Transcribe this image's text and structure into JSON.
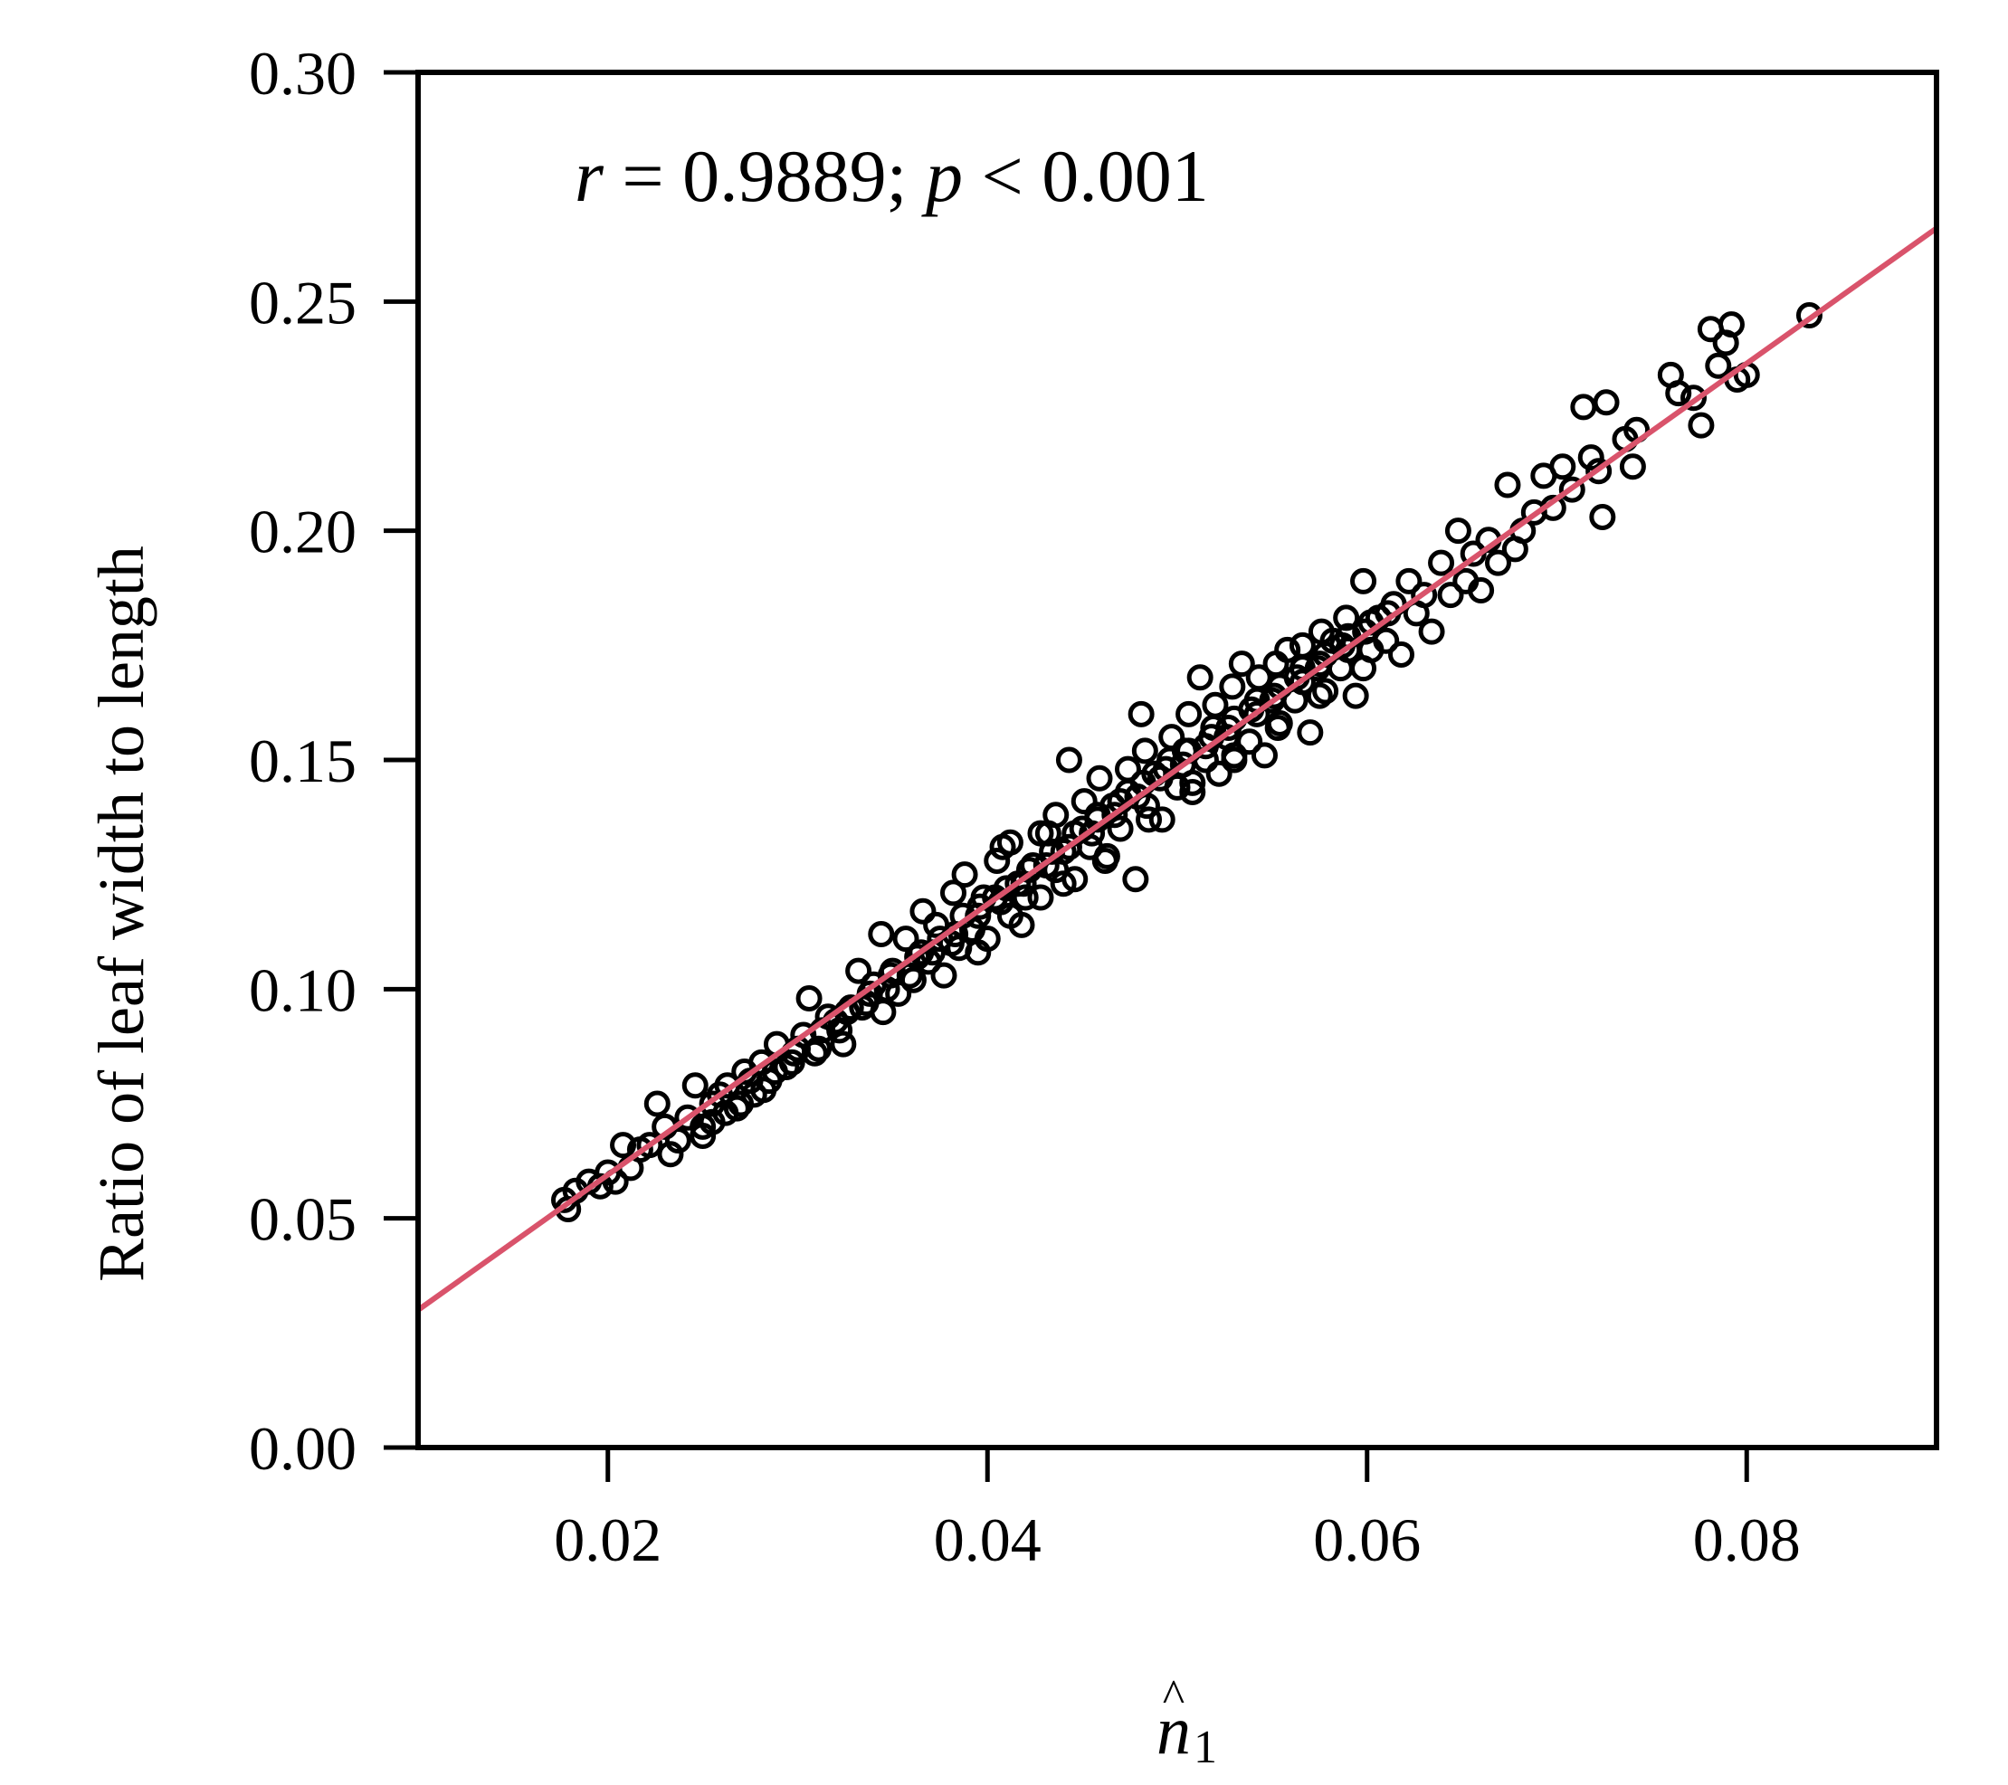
{
  "chart_data": {
    "type": "scatter",
    "title": "",
    "xlabel": "n̂1",
    "xlabel_symbol": "n",
    "xlabel_hat": "^",
    "xlabel_subscript": "1",
    "ylabel": "Ratio of leaf width to length",
    "xlim": [
      0.01,
      0.09
    ],
    "ylim": [
      0.0,
      0.3
    ],
    "x_ticks": [
      0.02,
      0.04,
      0.06,
      0.08
    ],
    "x_tick_labels": [
      "0.02",
      "0.04",
      "0.06",
      "0.08"
    ],
    "y_ticks": [
      0.0,
      0.05,
      0.1,
      0.15,
      0.2,
      0.25,
      0.3
    ],
    "y_tick_labels": [
      "0.00",
      "0.05",
      "0.10",
      "0.15",
      "0.20",
      "0.25",
      "0.30"
    ],
    "grid": false,
    "legend": "none",
    "marker": "open-circle",
    "marker_color": "#000000",
    "fit_line_color": "#d9536b",
    "annotation": {
      "r_symbol": "r",
      "r_text": " = 0.9889; ",
      "p_symbol": "p",
      "p_text": " < 0.001"
    },
    "fit_line": {
      "x": [
        0.01,
        0.09
      ],
      "y": [
        0.03,
        0.266
      ]
    },
    "points": [
      [
        0.0177,
        0.054
      ],
      [
        0.0179,
        0.052
      ],
      [
        0.0183,
        0.056
      ],
      [
        0.019,
        0.058
      ],
      [
        0.0196,
        0.057
      ],
      [
        0.02,
        0.06
      ],
      [
        0.0204,
        0.058
      ],
      [
        0.0208,
        0.066
      ],
      [
        0.0212,
        0.061
      ],
      [
        0.0217,
        0.065
      ],
      [
        0.0222,
        0.066
      ],
      [
        0.0226,
        0.075
      ],
      [
        0.023,
        0.07
      ],
      [
        0.0233,
        0.064
      ],
      [
        0.0237,
        0.067
      ],
      [
        0.0242,
        0.072
      ],
      [
        0.0246,
        0.079
      ],
      [
        0.025,
        0.07
      ],
      [
        0.0255,
        0.075
      ],
      [
        0.0259,
        0.077
      ],
      [
        0.0263,
        0.079
      ],
      [
        0.0268,
        0.074
      ],
      [
        0.0272,
        0.082
      ],
      [
        0.0277,
        0.077
      ],
      [
        0.0281,
        0.084
      ],
      [
        0.0285,
        0.08
      ],
      [
        0.0289,
        0.088
      ],
      [
        0.0294,
        0.083
      ],
      [
        0.0298,
        0.086
      ],
      [
        0.0303,
        0.09
      ],
      [
        0.0306,
        0.098
      ],
      [
        0.0311,
        0.087
      ],
      [
        0.0316,
        0.094
      ],
      [
        0.032,
        0.093
      ],
      [
        0.0324,
        0.088
      ],
      [
        0.0328,
        0.096
      ],
      [
        0.0332,
        0.104
      ],
      [
        0.0336,
        0.097
      ],
      [
        0.034,
        0.101
      ],
      [
        0.0345,
        0.095
      ],
      [
        0.0349,
        0.103
      ],
      [
        0.0353,
        0.099
      ],
      [
        0.0357,
        0.111
      ],
      [
        0.0361,
        0.102
      ],
      [
        0.0365,
        0.108
      ],
      [
        0.0369,
        0.106
      ],
      [
        0.0373,
        0.114
      ],
      [
        0.0377,
        0.103
      ],
      [
        0.0381,
        0.11
      ],
      [
        0.0385,
        0.109
      ],
      [
        0.0388,
        0.125
      ],
      [
        0.0392,
        0.113
      ],
      [
        0.0396,
        0.118
      ],
      [
        0.04,
        0.111
      ],
      [
        0.0404,
        0.12
      ],
      [
        0.0408,
        0.131
      ],
      [
        0.0412,
        0.116
      ],
      [
        0.0416,
        0.123
      ],
      [
        0.042,
        0.12
      ],
      [
        0.0424,
        0.127
      ],
      [
        0.0428,
        0.12
      ],
      [
        0.0432,
        0.134
      ],
      [
        0.0436,
        0.126
      ],
      [
        0.044,
        0.13
      ],
      [
        0.0443,
        0.15
      ],
      [
        0.0446,
        0.124
      ],
      [
        0.045,
        0.135
      ],
      [
        0.0454,
        0.131
      ],
      [
        0.0458,
        0.138
      ],
      [
        0.0462,
        0.128
      ],
      [
        0.0466,
        0.14
      ],
      [
        0.047,
        0.135
      ],
      [
        0.0474,
        0.143
      ],
      [
        0.0478,
        0.124
      ],
      [
        0.0481,
        0.16
      ],
      [
        0.0484,
        0.14
      ],
      [
        0.0488,
        0.147
      ],
      [
        0.0492,
        0.137
      ],
      [
        0.0496,
        0.15
      ],
      [
        0.05,
        0.144
      ],
      [
        0.0504,
        0.152
      ],
      [
        0.0508,
        0.145
      ],
      [
        0.0512,
        0.168
      ],
      [
        0.0515,
        0.15
      ],
      [
        0.0519,
        0.157
      ],
      [
        0.0522,
        0.147
      ],
      [
        0.0526,
        0.155
      ],
      [
        0.053,
        0.151
      ],
      [
        0.0534,
        0.171
      ],
      [
        0.0538,
        0.154
      ],
      [
        0.0542,
        0.16
      ],
      [
        0.0546,
        0.151
      ],
      [
        0.055,
        0.163
      ],
      [
        0.0554,
        0.158
      ],
      [
        0.0558,
        0.174
      ],
      [
        0.0562,
        0.163
      ],
      [
        0.0566,
        0.167
      ],
      [
        0.057,
        0.156
      ],
      [
        0.0574,
        0.17
      ],
      [
        0.0578,
        0.165
      ],
      [
        0.0582,
        0.176
      ],
      [
        0.0586,
        0.17
      ],
      [
        0.059,
        0.174
      ],
      [
        0.0594,
        0.164
      ],
      [
        0.0598,
        0.189
      ],
      [
        0.0602,
        0.174
      ],
      [
        0.0606,
        0.181
      ],
      [
        0.061,
        0.176
      ],
      [
        0.0614,
        0.184
      ],
      [
        0.0618,
        0.173
      ],
      [
        0.0622,
        0.189
      ],
      [
        0.0626,
        0.182
      ],
      [
        0.063,
        0.186
      ],
      [
        0.0634,
        0.178
      ],
      [
        0.0639,
        0.193
      ],
      [
        0.0644,
        0.186
      ],
      [
        0.0648,
        0.2
      ],
      [
        0.0652,
        0.189
      ],
      [
        0.0656,
        0.195
      ],
      [
        0.066,
        0.187
      ],
      [
        0.0664,
        0.198
      ],
      [
        0.0669,
        0.193
      ],
      [
        0.0674,
        0.21
      ],
      [
        0.0678,
        0.196
      ],
      [
        0.0682,
        0.2
      ],
      [
        0.0688,
        0.204
      ],
      [
        0.0693,
        0.212
      ],
      [
        0.0698,
        0.205
      ],
      [
        0.0703,
        0.214
      ],
      [
        0.0708,
        0.209
      ],
      [
        0.0714,
        0.227
      ],
      [
        0.0718,
        0.216
      ],
      [
        0.0722,
        0.213
      ],
      [
        0.0724,
        0.203
      ],
      [
        0.0726,
        0.228
      ],
      [
        0.0736,
        0.22
      ],
      [
        0.0742,
        0.222
      ],
      [
        0.074,
        0.214
      ],
      [
        0.076,
        0.234
      ],
      [
        0.0764,
        0.23
      ],
      [
        0.0772,
        0.229
      ],
      [
        0.0776,
        0.223
      ],
      [
        0.0781,
        0.244
      ],
      [
        0.0785,
        0.236
      ],
      [
        0.0789,
        0.241
      ],
      [
        0.0792,
        0.245
      ],
      [
        0.0795,
        0.233
      ],
      [
        0.08,
        0.234
      ],
      [
        0.0833,
        0.247
      ],
      [
        0.025,
        0.068
      ],
      [
        0.0262,
        0.073
      ],
      [
        0.0275,
        0.08
      ],
      [
        0.0288,
        0.082
      ],
      [
        0.03,
        0.087
      ],
      [
        0.0313,
        0.091
      ],
      [
        0.0326,
        0.095
      ],
      [
        0.0338,
        0.099
      ],
      [
        0.035,
        0.104
      ],
      [
        0.0363,
        0.107
      ],
      [
        0.0375,
        0.111
      ],
      [
        0.0387,
        0.116
      ],
      [
        0.0398,
        0.12
      ],
      [
        0.041,
        0.122
      ],
      [
        0.0422,
        0.126
      ],
      [
        0.0434,
        0.13
      ],
      [
        0.0446,
        0.134
      ],
      [
        0.0458,
        0.137
      ],
      [
        0.047,
        0.141
      ],
      [
        0.0482,
        0.145
      ],
      [
        0.0494,
        0.148
      ],
      [
        0.0506,
        0.152
      ],
      [
        0.0518,
        0.155
      ],
      [
        0.053,
        0.159
      ],
      [
        0.0542,
        0.163
      ],
      [
        0.0554,
        0.166
      ],
      [
        0.0566,
        0.17
      ],
      [
        0.0578,
        0.173
      ],
      [
        0.059,
        0.177
      ],
      [
        0.0602,
        0.18
      ],
      [
        0.0255,
        0.071
      ],
      [
        0.027,
        0.075
      ],
      [
        0.0282,
        0.078
      ],
      [
        0.0297,
        0.084
      ],
      [
        0.0309,
        0.086
      ],
      [
        0.0322,
        0.091
      ],
      [
        0.0334,
        0.096
      ],
      [
        0.0347,
        0.1
      ],
      [
        0.0359,
        0.103
      ],
      [
        0.0371,
        0.108
      ],
      [
        0.0383,
        0.112
      ],
      [
        0.0395,
        0.116
      ],
      [
        0.0407,
        0.119
      ],
      [
        0.0419,
        0.123
      ],
      [
        0.0431,
        0.127
      ],
      [
        0.0443,
        0.131
      ],
      [
        0.0455,
        0.134
      ],
      [
        0.0467,
        0.138
      ],
      [
        0.0479,
        0.142
      ],
      [
        0.0491,
        0.146
      ],
      [
        0.0503,
        0.149
      ],
      [
        0.0515,
        0.153
      ],
      [
        0.0527,
        0.157
      ],
      [
        0.0539,
        0.161
      ],
      [
        0.0551,
        0.164
      ],
      [
        0.0563,
        0.168
      ],
      [
        0.0575,
        0.171
      ],
      [
        0.0587,
        0.175
      ],
      [
        0.0599,
        0.178
      ],
      [
        0.0611,
        0.182
      ],
      [
        0.0395,
        0.108
      ],
      [
        0.0418,
        0.114
      ],
      [
        0.044,
        0.123
      ],
      [
        0.0463,
        0.129
      ],
      [
        0.0485,
        0.137
      ],
      [
        0.0508,
        0.143
      ],
      [
        0.053,
        0.15
      ],
      [
        0.0553,
        0.157
      ],
      [
        0.0575,
        0.164
      ],
      [
        0.0598,
        0.17
      ],
      [
        0.0382,
        0.121
      ],
      [
        0.0405,
        0.128
      ],
      [
        0.0428,
        0.134
      ],
      [
        0.0451,
        0.141
      ],
      [
        0.0474,
        0.148
      ],
      [
        0.0497,
        0.155
      ],
      [
        0.052,
        0.162
      ],
      [
        0.0543,
        0.168
      ],
      [
        0.0566,
        0.175
      ],
      [
        0.0589,
        0.181
      ],
      [
        0.0344,
        0.112
      ],
      [
        0.0366,
        0.117
      ],
      [
        0.0412,
        0.132
      ],
      [
        0.0436,
        0.138
      ],
      [
        0.0459,
        0.146
      ],
      [
        0.0483,
        0.152
      ],
      [
        0.0506,
        0.16
      ],
      [
        0.0529,
        0.166
      ],
      [
        0.0552,
        0.171
      ],
      [
        0.0576,
        0.178
      ]
    ]
  }
}
